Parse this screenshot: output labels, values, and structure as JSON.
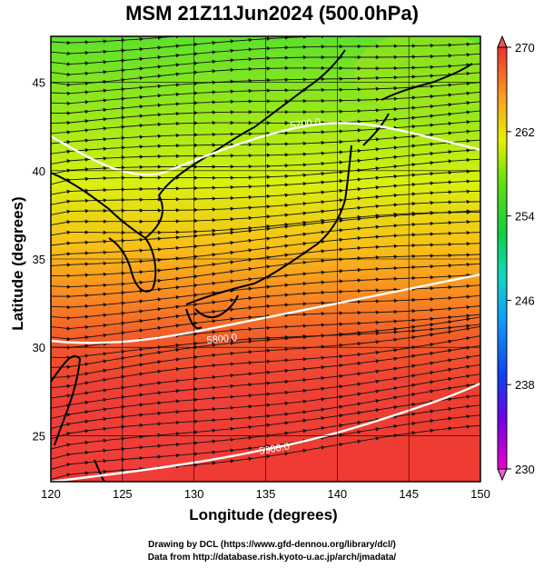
{
  "title": "MSM 21Z11Jun2024 (500.0hPa)",
  "xlabel": "Longitude (degrees)",
  "ylabel": "Latitude  (degrees)",
  "x_ticks": [
    "120",
    "125",
    "130",
    "135",
    "140",
    "145",
    "150"
  ],
  "y_ticks": [
    "25",
    "30",
    "35",
    "40",
    "45"
  ],
  "colorbar_ticks": [
    "270",
    "262",
    "254",
    "246",
    "238",
    "230"
  ],
  "contour_labels": [
    "5700.0",
    "5800.0",
    "5900.0"
  ],
  "footer": {
    "line1": "Drawing by DCL (https://www.gfd-dennou.org/library/dcl/)",
    "line2": "Data from http://database.rish.kyoto-u.ac.jp/arch/jmadata/"
  },
  "map_extent": {
    "lon": [
      120,
      150
    ],
    "lat": [
      22.4,
      47.6
    ]
  },
  "colorbar_range": [
    230,
    270
  ]
}
